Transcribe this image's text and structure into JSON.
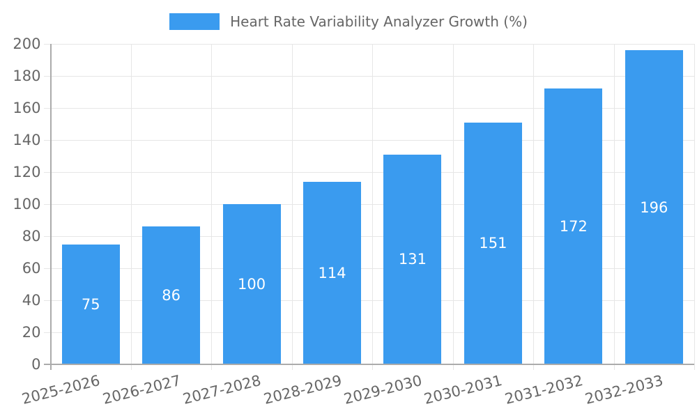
{
  "chart_data": {
    "type": "bar",
    "title": "Heart Rate Variability Analyzer Growth (%)",
    "legend_position": "top",
    "categories": [
      "2025-2026",
      "2026-2027",
      "2027-2028",
      "2028-2029",
      "2029-2030",
      "2030-2031",
      "2031-2032",
      "2032-2033"
    ],
    "series": [
      {
        "name": "Heart Rate Variability Analyzer Growth (%)",
        "values": [
          75,
          86,
          100,
          114,
          131,
          151,
          172,
          196
        ]
      }
    ],
    "value_labels_position": "inside-center",
    "xlabel": "",
    "ylabel": "",
    "ylim": [
      0,
      200
    ],
    "ytick_step": 20,
    "grid": "both",
    "x_label_rotation_deg": -14
  },
  "style": {
    "bar_color": "#3A9BEF",
    "grid_color": "#E6E6E6",
    "axis_color": "#ABABAB",
    "tick_text_color": "#666666",
    "legend_text_color": "#666666",
    "value_label_color": "#FFFFFF",
    "background": "#FFFFFF"
  }
}
